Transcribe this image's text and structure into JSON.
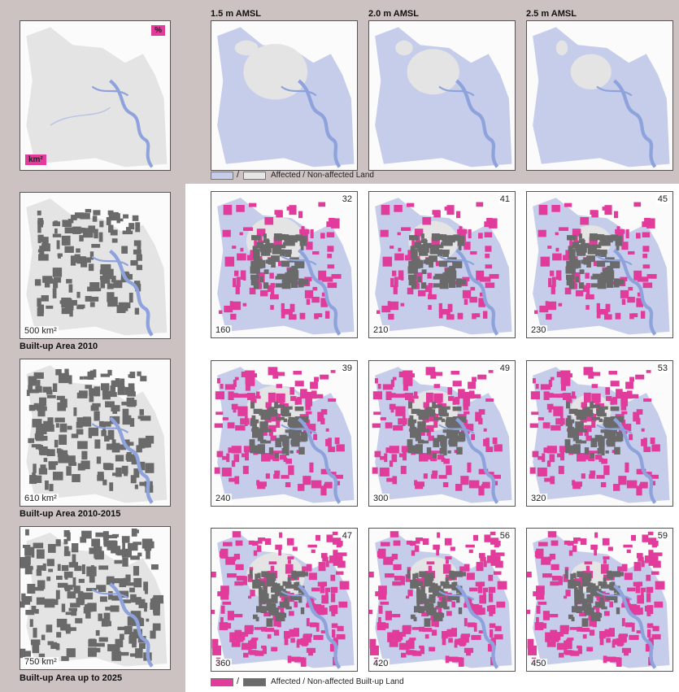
{
  "base_map": {
    "badge_top": "%",
    "badge_bottom": "km²"
  },
  "scenarios": [
    "1.5 m AMSL",
    "2.0 m AMSL",
    "2.5 m AMSL"
  ],
  "land_legend": {
    "slash": "/",
    "text": "Affected / Non-affected Land",
    "affected_color": "#c5cdea",
    "non_affected_color": "#e6e6e6"
  },
  "rows": [
    {
      "title": "Built-up Area 2010",
      "total_area": "500 km²",
      "results": [
        {
          "percent": "32",
          "area": "160"
        },
        {
          "percent": "41",
          "area": "210"
        },
        {
          "percent": "45",
          "area": "230"
        }
      ]
    },
    {
      "title": "Built-up Area 2010-2015",
      "total_area": "610 km²",
      "results": [
        {
          "percent": "39",
          "area": "240"
        },
        {
          "percent": "49",
          "area": "300"
        },
        {
          "percent": "53",
          "area": "320"
        }
      ]
    },
    {
      "title": "Built-up Area up to 2025",
      "total_area": "750 km²",
      "results": [
        {
          "percent": "47",
          "area": "360"
        },
        {
          "percent": "56",
          "area": "420"
        },
        {
          "percent": "59",
          "area": "450"
        }
      ]
    }
  ],
  "builtup_legend": {
    "slash": "/",
    "text": "Affected / Non-affected Built-up Land",
    "affected_color": "#e13b9b",
    "non_affected_color": "#6a6a6a"
  },
  "colors": {
    "land": "#e4e4e4",
    "flood": "#c5cdea",
    "river": "#8ea3dc",
    "built_up": "#6a6a6a",
    "affected_built_up": "#e13b9b",
    "panel_bg": "#cdc2c2"
  }
}
